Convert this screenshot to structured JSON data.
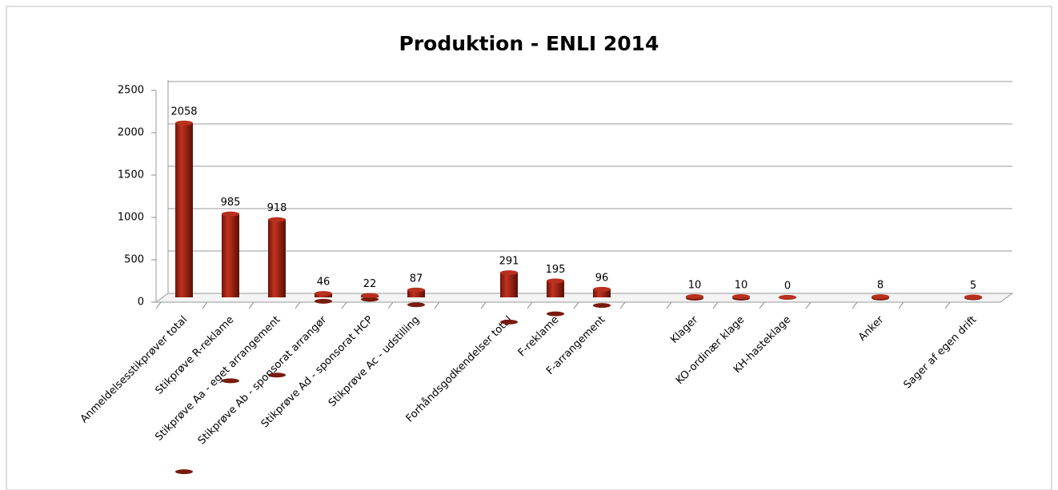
{
  "chart_data": {
    "type": "bar",
    "title": "Produktion - ENLI 2014",
    "categories": [
      "Anmeldelsesstikprøver total",
      "Stikprøve R-reklame",
      "Stikprøve Aa - eget arrangement",
      "Stikprøve Ab - sponsorat arrangør",
      "Stikprøve Ad - sponsorat HCP",
      "Stikprøve Ac - udstilling",
      null,
      "Forhåndsgodkendelser total",
      "F-reklame",
      "F-arrangement",
      null,
      "Klager",
      "KO-ordinær klage",
      "KH-hasteklage",
      null,
      "Anker",
      null,
      "Sager af egen drift"
    ],
    "values": [
      2058,
      985,
      918,
      46,
      22,
      87,
      null,
      291,
      195,
      96,
      null,
      10,
      10,
      0,
      null,
      8,
      null,
      5
    ],
    "color": "#9b2114",
    "ylim": [
      0,
      2500
    ],
    "yticks": [
      0,
      500,
      1000,
      1500,
      2000,
      2500
    ],
    "grid": true
  }
}
